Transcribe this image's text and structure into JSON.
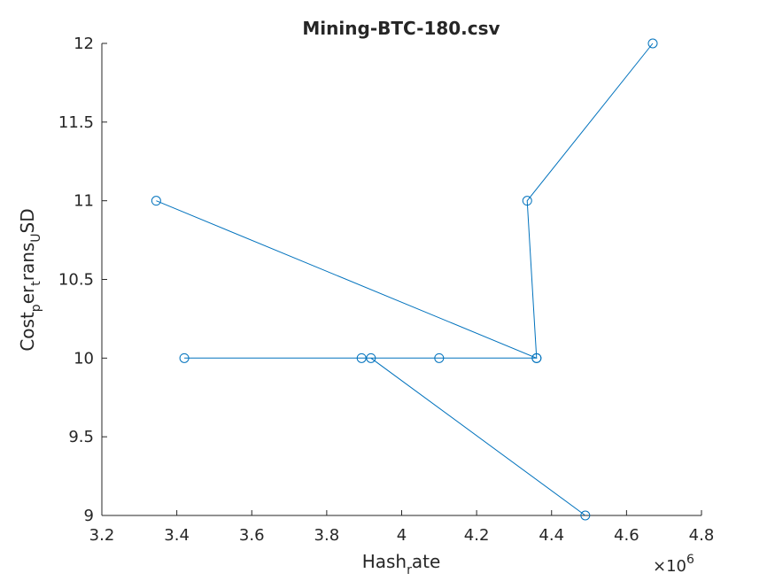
{
  "chart_data": {
    "type": "line",
    "title": "Mining-BTC-180.csv",
    "xlabel": "Hash_rate",
    "ylabel": "Cost_per_trans_USD",
    "x_exponent_label": "×10",
    "x_exponent_power": "6",
    "xlim": [
      3200000,
      4800000
    ],
    "ylim": [
      9,
      12
    ],
    "xticks": [
      3200000,
      3400000,
      3600000,
      3800000,
      4000000,
      4200000,
      4400000,
      4600000,
      4800000
    ],
    "xtick_labels": [
      "3.2",
      "3.4",
      "3.6",
      "3.8",
      "4",
      "4.2",
      "4.4",
      "4.6",
      "4.8"
    ],
    "yticks": [
      9,
      9.5,
      10,
      10.5,
      11,
      11.5,
      12
    ],
    "ytick_labels": [
      "9",
      "9.5",
      "10",
      "10.5",
      "11",
      "11.5",
      "12"
    ],
    "marker": "circle",
    "line_color": "#0072BD",
    "grid": false,
    "series": [
      {
        "x": [
          4670000,
          4335000,
          4360000,
          3345000,
          4360000,
          4100000,
          3420000,
          3893000,
          3918000,
          4490000
        ],
        "y": [
          12,
          11,
          10,
          11,
          10,
          10,
          10,
          10,
          10,
          9
        ]
      }
    ]
  }
}
